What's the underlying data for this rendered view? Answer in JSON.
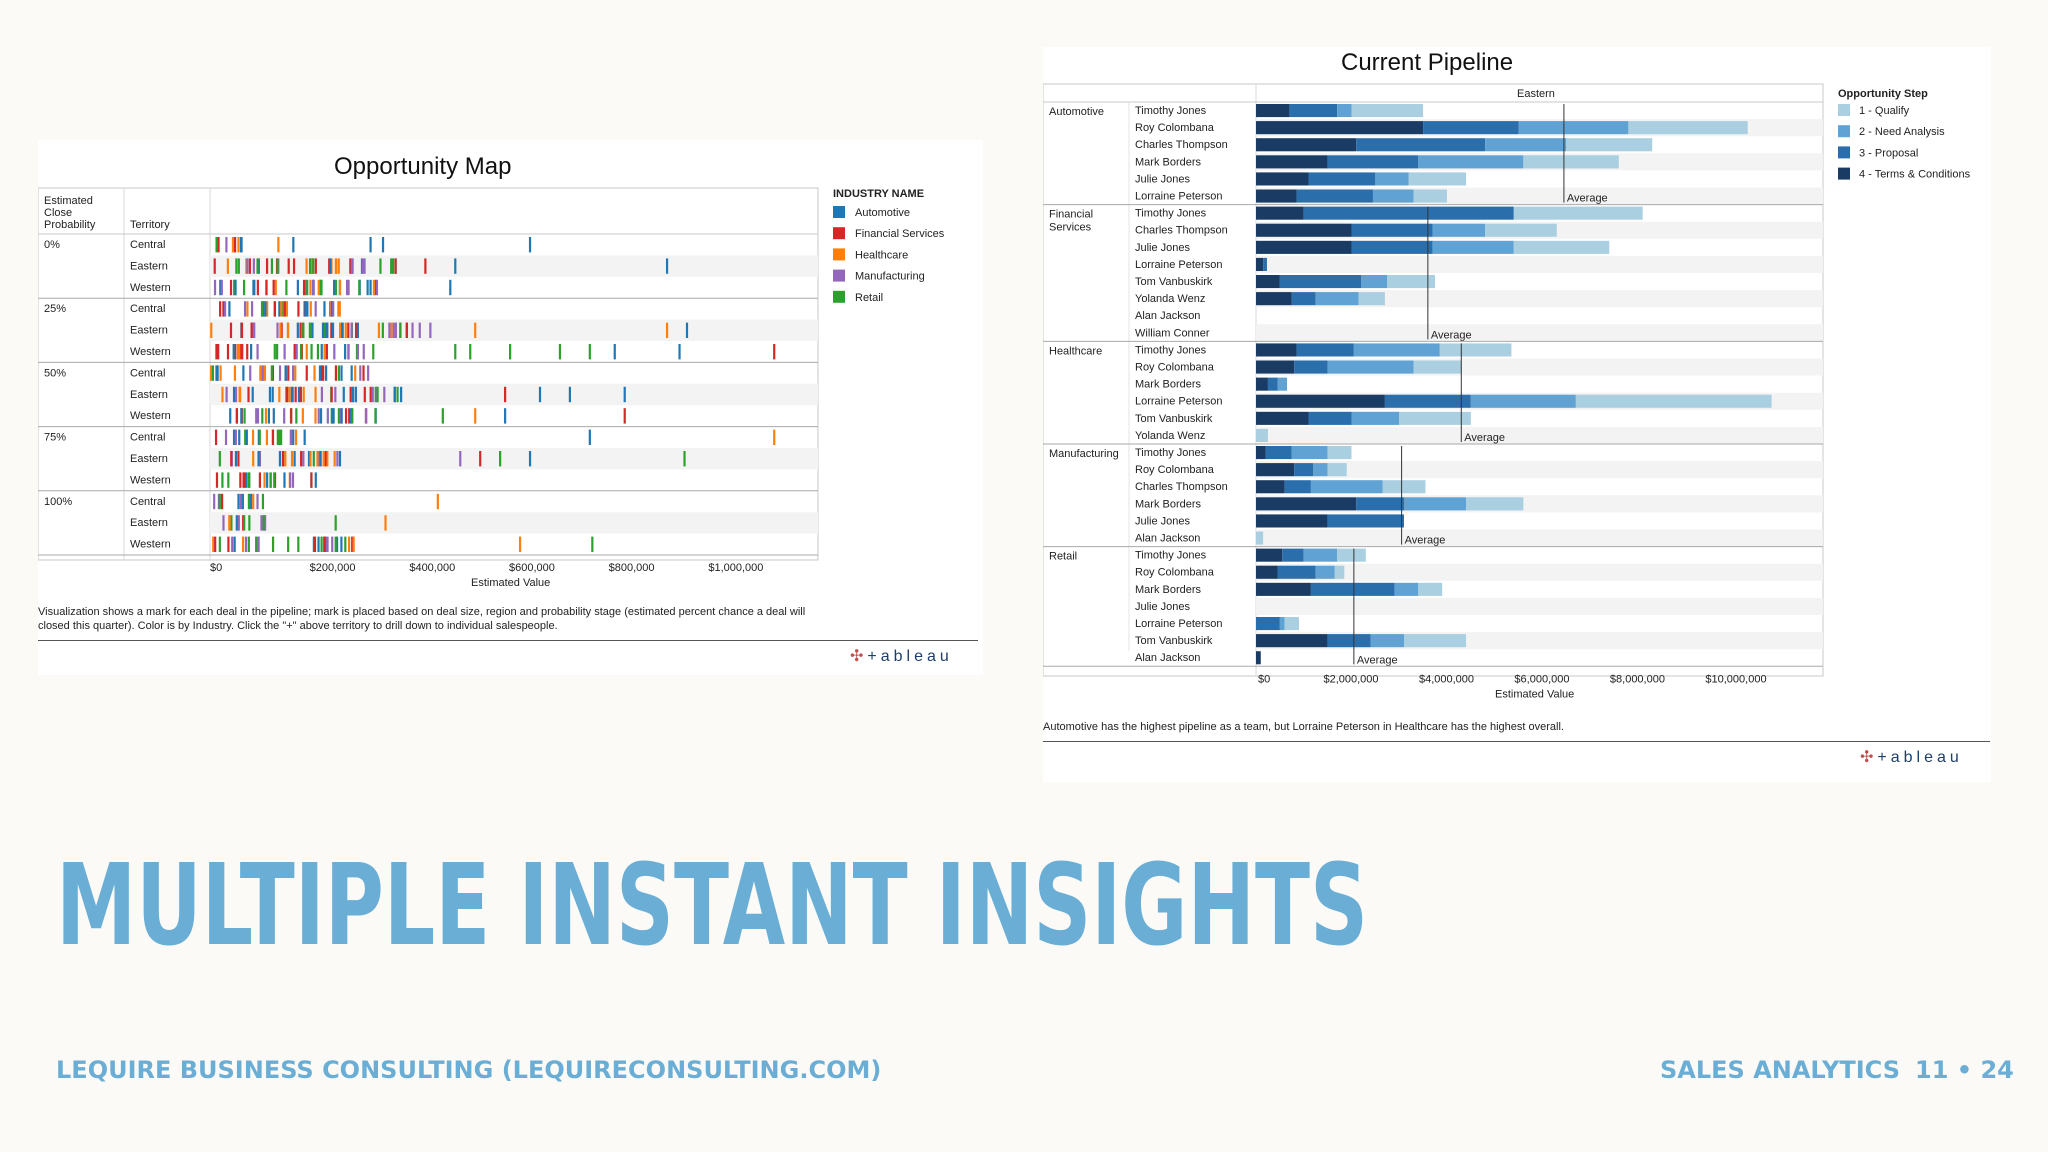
{
  "slide": {
    "title": "MULTIPLE INSTANT INSIGHTS",
    "footer_left": "LEQUIRE BUSINESS CONSULTING (LEQUIRECONSULTING.COM)",
    "footer_right": "SALES ANALYTICS",
    "page": "11 • 24",
    "accent": "#6aaed6",
    "logo_text": "+ableau"
  },
  "chart_data": [
    {
      "type": "scatter",
      "title": "Opportunity Map",
      "row_headers": [
        "Estimated Close Probability",
        "Territory"
      ],
      "probabilities": [
        "0%",
        "25%",
        "50%",
        "75%",
        "100%"
      ],
      "territories": [
        "Central",
        "Eastern",
        "Western"
      ],
      "xlabel": "Estimated Value",
      "x_ticks": [
        "$0",
        "$200,000",
        "$400,000",
        "$600,000",
        "$800,000",
        "$1,000,000"
      ],
      "xlim": [
        0,
        1200000
      ],
      "legend_title": "INDUSTRY NAME",
      "industries": [
        {
          "name": "Automotive",
          "color": "#1f77b4"
        },
        {
          "name": "Financial Services",
          "color": "#d62728"
        },
        {
          "name": "Healthcare",
          "color": "#ff7f0e"
        },
        {
          "name": "Manufacturing",
          "color": "#9467bd"
        },
        {
          "name": "Retail",
          "color": "#2ca02c"
        }
      ],
      "outlier_deals": [
        {
          "prob": "0%",
          "territory": "Central",
          "values": [
            {
              "x": 640000,
              "i": 0
            },
            {
              "x": 320000,
              "i": 0
            },
            {
              "x": 345000,
              "i": 0
            },
            {
              "x": 135000,
              "i": 2
            },
            {
              "x": 165000,
              "i": 0
            }
          ]
        },
        {
          "prob": "0%",
          "territory": "Eastern",
          "values": [
            {
              "x": 430000,
              "i": 1
            },
            {
              "x": 490000,
              "i": 0
            },
            {
              "x": 915000,
              "i": 0
            }
          ]
        },
        {
          "prob": "0%",
          "territory": "Western",
          "values": [
            {
              "x": 480000,
              "i": 0
            },
            {
              "x": 320000,
              "i": 0
            },
            {
              "x": 205000,
              "i": 3
            }
          ]
        },
        {
          "prob": "25%",
          "territory": "Central",
          "values": [
            {
              "x": 245000,
              "i": 3
            },
            {
              "x": 200000,
              "i": 2
            }
          ]
        },
        {
          "prob": "25%",
          "territory": "Eastern",
          "values": [
            {
              "x": 380000,
              "i": 4
            },
            {
              "x": 440000,
              "i": 3
            },
            {
              "x": 530000,
              "i": 2
            },
            {
              "x": 915000,
              "i": 2
            },
            {
              "x": 955000,
              "i": 0
            }
          ]
        },
        {
          "prob": "25%",
          "territory": "Western",
          "values": [
            {
              "x": 490000,
              "i": 4
            },
            {
              "x": 520000,
              "i": 4
            },
            {
              "x": 600000,
              "i": 4
            },
            {
              "x": 700000,
              "i": 4
            },
            {
              "x": 760000,
              "i": 4
            },
            {
              "x": 810000,
              "i": 0
            },
            {
              "x": 940000,
              "i": 0
            },
            {
              "x": 1130000,
              "i": 1
            }
          ]
        },
        {
          "prob": "50%",
          "territory": "Eastern",
          "values": [
            {
              "x": 590000,
              "i": 1
            },
            {
              "x": 660000,
              "i": 0
            },
            {
              "x": 720000,
              "i": 0
            },
            {
              "x": 830000,
              "i": 0
            }
          ]
        },
        {
          "prob": "50%",
          "territory": "Western",
          "values": [
            {
              "x": 465000,
              "i": 4
            },
            {
              "x": 530000,
              "i": 2
            },
            {
              "x": 590000,
              "i": 0
            },
            {
              "x": 830000,
              "i": 1
            }
          ]
        },
        {
          "prob": "75%",
          "territory": "Central",
          "values": [
            {
              "x": 760000,
              "i": 0
            },
            {
              "x": 1130000,
              "i": 2
            }
          ]
        },
        {
          "prob": "75%",
          "territory": "Eastern",
          "values": [
            {
              "x": 500000,
              "i": 3
            },
            {
              "x": 540000,
              "i": 1
            },
            {
              "x": 580000,
              "i": 4
            },
            {
              "x": 640000,
              "i": 0
            },
            {
              "x": 950000,
              "i": 4
            }
          ]
        },
        {
          "prob": "100%",
          "territory": "Central",
          "values": [
            {
              "x": 455000,
              "i": 2
            }
          ]
        },
        {
          "prob": "100%",
          "territory": "Eastern",
          "values": [
            {
              "x": 250000,
              "i": 4
            },
            {
              "x": 350000,
              "i": 2
            }
          ]
        },
        {
          "prob": "100%",
          "territory": "Western",
          "values": [
            {
              "x": 250000,
              "i": 4
            },
            {
              "x": 620000,
              "i": 2
            },
            {
              "x": 765000,
              "i": 4
            }
          ]
        }
      ],
      "caption": "Visualization shows a mark for each deal in the pipeline; mark is placed based on deal size, region and probability stage (estimated percent chance a deal will closed this quarter). Color is by Industry. Click the \"+\" above territory to drill down to individual salespeople."
    },
    {
      "type": "bar",
      "title": "Current Pipeline",
      "column_header": "Eastern",
      "xlabel": "Estimated Value",
      "x_ticks": [
        "$0",
        "$2,000,000",
        "$4,000,000",
        "$6,000,000",
        "$8,000,000",
        "$10,000,000"
      ],
      "xlim": [
        0,
        11500000
      ],
      "legend_title": "Opportunity Step",
      "steps": [
        {
          "name": "1 - Qualify",
          "color": "#a9cfe0"
        },
        {
          "name": "2 - Need Analysis",
          "color": "#5fa2d3"
        },
        {
          "name": "3 - Proposal",
          "color": "#2a6fac"
        },
        {
          "name": "4 - Terms & Conditions",
          "color": "#1a3b64"
        }
      ],
      "average_label": "Average",
      "groups": [
        {
          "industry": "Automotive",
          "average": 6450000,
          "rows": [
            {
              "name": "Timothy Jones",
              "segments": [
                700000,
                1000000,
                300000,
                1500000
              ]
            },
            {
              "name": "Roy Colombana",
              "segments": [
                3500000,
                2000000,
                2300000,
                2500000
              ]
            },
            {
              "name": "Charles Thompson",
              "segments": [
                2100000,
                2700000,
                1700000,
                1800000
              ]
            },
            {
              "name": "Mark Borders",
              "segments": [
                1500000,
                1900000,
                2200000,
                2000000
              ]
            },
            {
              "name": "Julie Jones",
              "segments": [
                1100000,
                1400000,
                700000,
                1200000
              ]
            },
            {
              "name": "Lorraine Peterson",
              "segments": [
                850000,
                1600000,
                850000,
                700000
              ]
            }
          ]
        },
        {
          "industry": "Financial Services",
          "average": 3600000,
          "rows": [
            {
              "name": "Timothy Jones",
              "segments": [
                1000000,
                4400000,
                0,
                2700000
              ]
            },
            {
              "name": "Charles Thompson",
              "segments": [
                2000000,
                1700000,
                1100000,
                1500000
              ]
            },
            {
              "name": "Julie Jones",
              "segments": [
                2000000,
                1700000,
                1700000,
                2000000
              ]
            },
            {
              "name": "Lorraine Peterson",
              "segments": [
                150000,
                80000,
                0,
                0
              ]
            },
            {
              "name": "Tom Vanbuskirk",
              "segments": [
                500000,
                1700000,
                550000,
                1000000
              ]
            },
            {
              "name": "Yolanda Wenz",
              "segments": [
                750000,
                500000,
                900000,
                550000
              ]
            },
            {
              "name": "Alan Jackson",
              "segments": [
                0,
                0,
                0,
                0
              ]
            },
            {
              "name": "William Conner",
              "segments": [
                0,
                0,
                0,
                0
              ]
            }
          ]
        },
        {
          "industry": "Healthcare",
          "average": 4300000,
          "rows": [
            {
              "name": "Timothy Jones",
              "segments": [
                850000,
                1200000,
                1800000,
                1500000
              ]
            },
            {
              "name": "Roy Colombana",
              "segments": [
                800000,
                700000,
                1800000,
                1000000
              ]
            },
            {
              "name": "Mark Borders",
              "segments": [
                250000,
                200000,
                200000,
                0
              ]
            },
            {
              "name": "Lorraine Peterson",
              "segments": [
                2700000,
                1800000,
                2200000,
                4100000
              ]
            },
            {
              "name": "Tom Vanbuskirk",
              "segments": [
                1100000,
                900000,
                1000000,
                1500000
              ]
            },
            {
              "name": "Yolanda Wenz",
              "segments": [
                0,
                0,
                0,
                250000
              ]
            }
          ]
        },
        {
          "industry": "Manufacturing",
          "average": 3050000,
          "rows": [
            {
              "name": "Timothy Jones",
              "segments": [
                200000,
                550000,
                750000,
                500000
              ]
            },
            {
              "name": "Roy Colombana",
              "segments": [
                800000,
                400000,
                300000,
                400000
              ]
            },
            {
              "name": "Charles Thompson",
              "segments": [
                600000,
                550000,
                1500000,
                900000
              ]
            },
            {
              "name": "Mark Borders",
              "segments": [
                2100000,
                1000000,
                1300000,
                1200000
              ]
            },
            {
              "name": "Julie Jones",
              "segments": [
                1500000,
                1600000,
                0,
                0
              ]
            },
            {
              "name": "Alan Jackson",
              "segments": [
                0,
                0,
                0,
                150000
              ]
            }
          ]
        },
        {
          "industry": "Retail",
          "average": 2050000,
          "rows": [
            {
              "name": "Timothy Jones",
              "segments": [
                550000,
                450000,
                700000,
                600000
              ]
            },
            {
              "name": "Roy Colombana",
              "segments": [
                450000,
                800000,
                400000,
                200000
              ]
            },
            {
              "name": "Mark Borders",
              "segments": [
                1150000,
                1750000,
                500000,
                500000
              ]
            },
            {
              "name": "Julie Jones",
              "segments": [
                0,
                0,
                0,
                0
              ]
            },
            {
              "name": "Lorraine Peterson",
              "segments": [
                0,
                500000,
                100000,
                300000
              ]
            },
            {
              "name": "Tom Vanbuskirk",
              "segments": [
                1500000,
                900000,
                700000,
                1300000
              ]
            },
            {
              "name": "Alan Jackson",
              "segments": [
                100000,
                0,
                0,
                0
              ]
            }
          ]
        }
      ],
      "caption": "Automotive has the highest pipeline as a team, but Lorraine Peterson in Healthcare has the highest overall."
    }
  ]
}
